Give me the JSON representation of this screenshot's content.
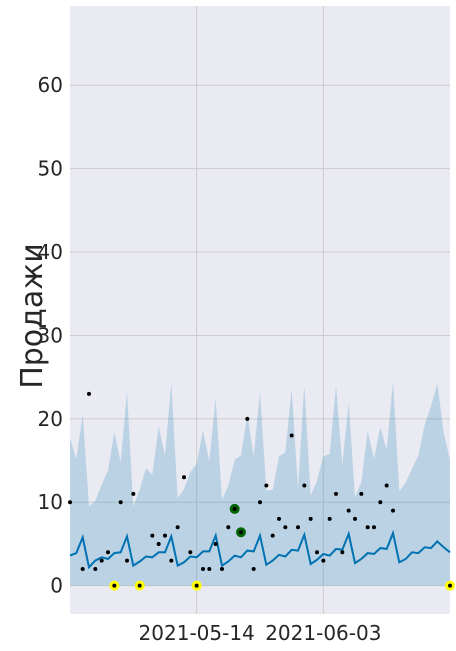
{
  "chart_data": {
    "type": "line",
    "title": "",
    "xlabel": "",
    "ylabel": "Продажи",
    "xlim": [
      "2021-04-24",
      "2021-06-23"
    ],
    "ylim": [
      -3.4,
      69.5
    ],
    "yticks": [
      0,
      10,
      20,
      30,
      40,
      50,
      60
    ],
    "xticks": [
      {
        "date": "2021-05-14",
        "label": "2021-05-14"
      },
      {
        "date": "2021-06-03",
        "label": "2021-06-03"
      }
    ],
    "grid": true,
    "colors": {
      "background": "#eaeaf2",
      "grid": "#cccccc",
      "forecast": "#0072b2",
      "interval": "#0072b2",
      "observed": "#000000",
      "zero_marker": "#ffff00",
      "highlight": "#006400"
    },
    "series": [
      {
        "role": "forecast",
        "points": [
          [
            "2021-04-24",
            3.6
          ],
          [
            "2021-04-25",
            3.9
          ],
          [
            "2021-04-26",
            5.8
          ],
          [
            "2021-04-27",
            2.2
          ],
          [
            "2021-04-28",
            3.0
          ],
          [
            "2021-04-29",
            3.4
          ],
          [
            "2021-04-30",
            3.2
          ],
          [
            "2021-05-01",
            3.9
          ],
          [
            "2021-05-02",
            4.0
          ],
          [
            "2021-05-03",
            5.9
          ],
          [
            "2021-05-04",
            2.4
          ],
          [
            "2021-05-05",
            2.9
          ],
          [
            "2021-05-06",
            3.5
          ],
          [
            "2021-05-07",
            3.4
          ],
          [
            "2021-05-08",
            4.0
          ],
          [
            "2021-05-09",
            4.0
          ],
          [
            "2021-05-10",
            5.9
          ],
          [
            "2021-05-11",
            2.4
          ],
          [
            "2021-05-12",
            2.8
          ],
          [
            "2021-05-13",
            3.5
          ],
          [
            "2021-05-14",
            3.4
          ],
          [
            "2021-05-15",
            4.1
          ],
          [
            "2021-05-16",
            4.1
          ],
          [
            "2021-05-17",
            6.0
          ],
          [
            "2021-05-18",
            2.4
          ],
          [
            "2021-05-19",
            2.9
          ],
          [
            "2021-05-20",
            3.6
          ],
          [
            "2021-05-21",
            3.4
          ],
          [
            "2021-05-22",
            4.2
          ],
          [
            "2021-05-23",
            4.1
          ],
          [
            "2021-05-24",
            6.0
          ],
          [
            "2021-05-25",
            2.5
          ],
          [
            "2021-05-26",
            3.0
          ],
          [
            "2021-05-27",
            3.7
          ],
          [
            "2021-05-28",
            3.5
          ],
          [
            "2021-05-29",
            4.3
          ],
          [
            "2021-05-30",
            4.2
          ],
          [
            "2021-05-31",
            6.1
          ],
          [
            "2021-06-01",
            2.6
          ],
          [
            "2021-06-02",
            3.1
          ],
          [
            "2021-06-03",
            3.8
          ],
          [
            "2021-06-04",
            3.6
          ],
          [
            "2021-06-05",
            4.4
          ],
          [
            "2021-06-06",
            4.3
          ],
          [
            "2021-06-07",
            6.2
          ],
          [
            "2021-06-08",
            2.7
          ],
          [
            "2021-06-09",
            3.2
          ],
          [
            "2021-06-10",
            3.9
          ],
          [
            "2021-06-11",
            3.8
          ],
          [
            "2021-06-12",
            4.5
          ],
          [
            "2021-06-13",
            4.4
          ],
          [
            "2021-06-14",
            6.3
          ],
          [
            "2021-06-15",
            2.8
          ],
          [
            "2021-06-16",
            3.2
          ],
          [
            "2021-06-17",
            4.0
          ],
          [
            "2021-06-18",
            3.9
          ],
          [
            "2021-06-19",
            4.6
          ],
          [
            "2021-06-20",
            4.5
          ],
          [
            "2021-06-21",
            5.3
          ],
          [
            "2021-06-22",
            4.6
          ],
          [
            "2021-06-23",
            4.0
          ]
        ]
      },
      {
        "role": "uncertainty_interval",
        "upper": [
          [
            "2021-04-24",
            17.7
          ],
          [
            "2021-04-25",
            15.2
          ],
          [
            "2021-04-26",
            20.5
          ],
          [
            "2021-04-27",
            9.5
          ],
          [
            "2021-04-28",
            10.2
          ],
          [
            "2021-04-29",
            12.1
          ],
          [
            "2021-04-30",
            13.8
          ],
          [
            "2021-05-01",
            18.4
          ],
          [
            "2021-05-02",
            14.8
          ],
          [
            "2021-05-03",
            23.3
          ],
          [
            "2021-05-04",
            9.5
          ],
          [
            "2021-05-05",
            11.5
          ],
          [
            "2021-05-06",
            14.1
          ],
          [
            "2021-05-07",
            13.3
          ],
          [
            "2021-05-08",
            19.1
          ],
          [
            "2021-05-09",
            15.6
          ],
          [
            "2021-05-10",
            24.3
          ],
          [
            "2021-05-11",
            10.5
          ],
          [
            "2021-05-12",
            11.6
          ],
          [
            "2021-05-13",
            13.6
          ],
          [
            "2021-05-14",
            14.6
          ],
          [
            "2021-05-15",
            18.6
          ],
          [
            "2021-05-16",
            14.9
          ],
          [
            "2021-05-17",
            22.5
          ],
          [
            "2021-05-18",
            10.3
          ],
          [
            "2021-05-19",
            12.0
          ],
          [
            "2021-05-20",
            15.1
          ],
          [
            "2021-05-21",
            15.6
          ],
          [
            "2021-05-22",
            20.5
          ],
          [
            "2021-05-23",
            15.5
          ],
          [
            "2021-05-24",
            23.3
          ],
          [
            "2021-05-25",
            11.4
          ],
          [
            "2021-05-26",
            11.5
          ],
          [
            "2021-05-27",
            15.5
          ],
          [
            "2021-05-28",
            16.0
          ],
          [
            "2021-05-29",
            23.6
          ],
          [
            "2021-05-30",
            11.6
          ],
          [
            "2021-05-31",
            24.0
          ],
          [
            "2021-06-01",
            10.8
          ],
          [
            "2021-06-02",
            12.6
          ],
          [
            "2021-06-03",
            15.5
          ],
          [
            "2021-06-04",
            15.8
          ],
          [
            "2021-06-05",
            24.0
          ],
          [
            "2021-06-06",
            14.5
          ],
          [
            "2021-06-07",
            22.0
          ],
          [
            "2021-06-08",
            10.6
          ],
          [
            "2021-06-09",
            12.4
          ],
          [
            "2021-06-10",
            18.5
          ],
          [
            "2021-06-11",
            15.2
          ],
          [
            "2021-06-12",
            19.0
          ],
          [
            "2021-06-13",
            16.3
          ],
          [
            "2021-06-14",
            24.5
          ],
          [
            "2021-06-15",
            11.3
          ],
          [
            "2021-06-16",
            12.4
          ],
          [
            "2021-06-17",
            14.0
          ],
          [
            "2021-06-18",
            15.6
          ],
          [
            "2021-06-19",
            19.3
          ],
          [
            "2021-06-20",
            21.5
          ],
          [
            "2021-06-21",
            24.2
          ],
          [
            "2021-06-22",
            18.4
          ],
          [
            "2021-06-23",
            15.0
          ]
        ],
        "lower": [
          [
            "2021-04-24",
            0.0
          ],
          [
            "2021-06-23",
            0.0
          ]
        ]
      },
      {
        "role": "observed",
        "points": [
          [
            "2021-04-24",
            10
          ],
          [
            "2021-04-26",
            2
          ],
          [
            "2021-04-27",
            23
          ],
          [
            "2021-04-28",
            2
          ],
          [
            "2021-04-29",
            3
          ],
          [
            "2021-04-30",
            4
          ],
          [
            "2021-05-01",
            0
          ],
          [
            "2021-05-02",
            10
          ],
          [
            "2021-05-03",
            3
          ],
          [
            "2021-05-04",
            11
          ],
          [
            "2021-05-05",
            0
          ],
          [
            "2021-05-07",
            6
          ],
          [
            "2021-05-08",
            5
          ],
          [
            "2021-05-09",
            6
          ],
          [
            "2021-05-10",
            3
          ],
          [
            "2021-05-11",
            7
          ],
          [
            "2021-05-12",
            13
          ],
          [
            "2021-05-13",
            4
          ],
          [
            "2021-05-14",
            0
          ],
          [
            "2021-05-15",
            2
          ],
          [
            "2021-05-16",
            2
          ],
          [
            "2021-05-17",
            5
          ],
          [
            "2021-05-18",
            2
          ],
          [
            "2021-05-19",
            7
          ],
          [
            "2021-05-20",
            9.2
          ],
          [
            "2021-05-21",
            6.4
          ],
          [
            "2021-05-22",
            20
          ],
          [
            "2021-05-23",
            2
          ],
          [
            "2021-05-24",
            10
          ],
          [
            "2021-05-25",
            12
          ],
          [
            "2021-05-26",
            6
          ],
          [
            "2021-05-27",
            8
          ],
          [
            "2021-05-28",
            7
          ],
          [
            "2021-05-29",
            18
          ],
          [
            "2021-05-30",
            7
          ],
          [
            "2021-05-31",
            12
          ],
          [
            "2021-06-01",
            8
          ],
          [
            "2021-06-02",
            4
          ],
          [
            "2021-06-03",
            3
          ],
          [
            "2021-06-04",
            8
          ],
          [
            "2021-06-05",
            11
          ],
          [
            "2021-06-06",
            4
          ],
          [
            "2021-06-07",
            9
          ],
          [
            "2021-06-08",
            8
          ],
          [
            "2021-06-09",
            11
          ],
          [
            "2021-06-10",
            7
          ],
          [
            "2021-06-11",
            7
          ],
          [
            "2021-06-12",
            10
          ],
          [
            "2021-06-13",
            12
          ],
          [
            "2021-06-14",
            9
          ],
          [
            "2021-06-23",
            0
          ]
        ]
      },
      {
        "role": "zero_sales_markers",
        "points": [
          [
            "2021-05-01",
            0
          ],
          [
            "2021-05-05",
            0
          ],
          [
            "2021-05-14",
            0
          ],
          [
            "2021-06-23",
            0
          ]
        ]
      },
      {
        "role": "highlighted_points",
        "points": [
          [
            "2021-05-20",
            9.2
          ],
          [
            "2021-05-21",
            6.4
          ]
        ]
      }
    ]
  }
}
